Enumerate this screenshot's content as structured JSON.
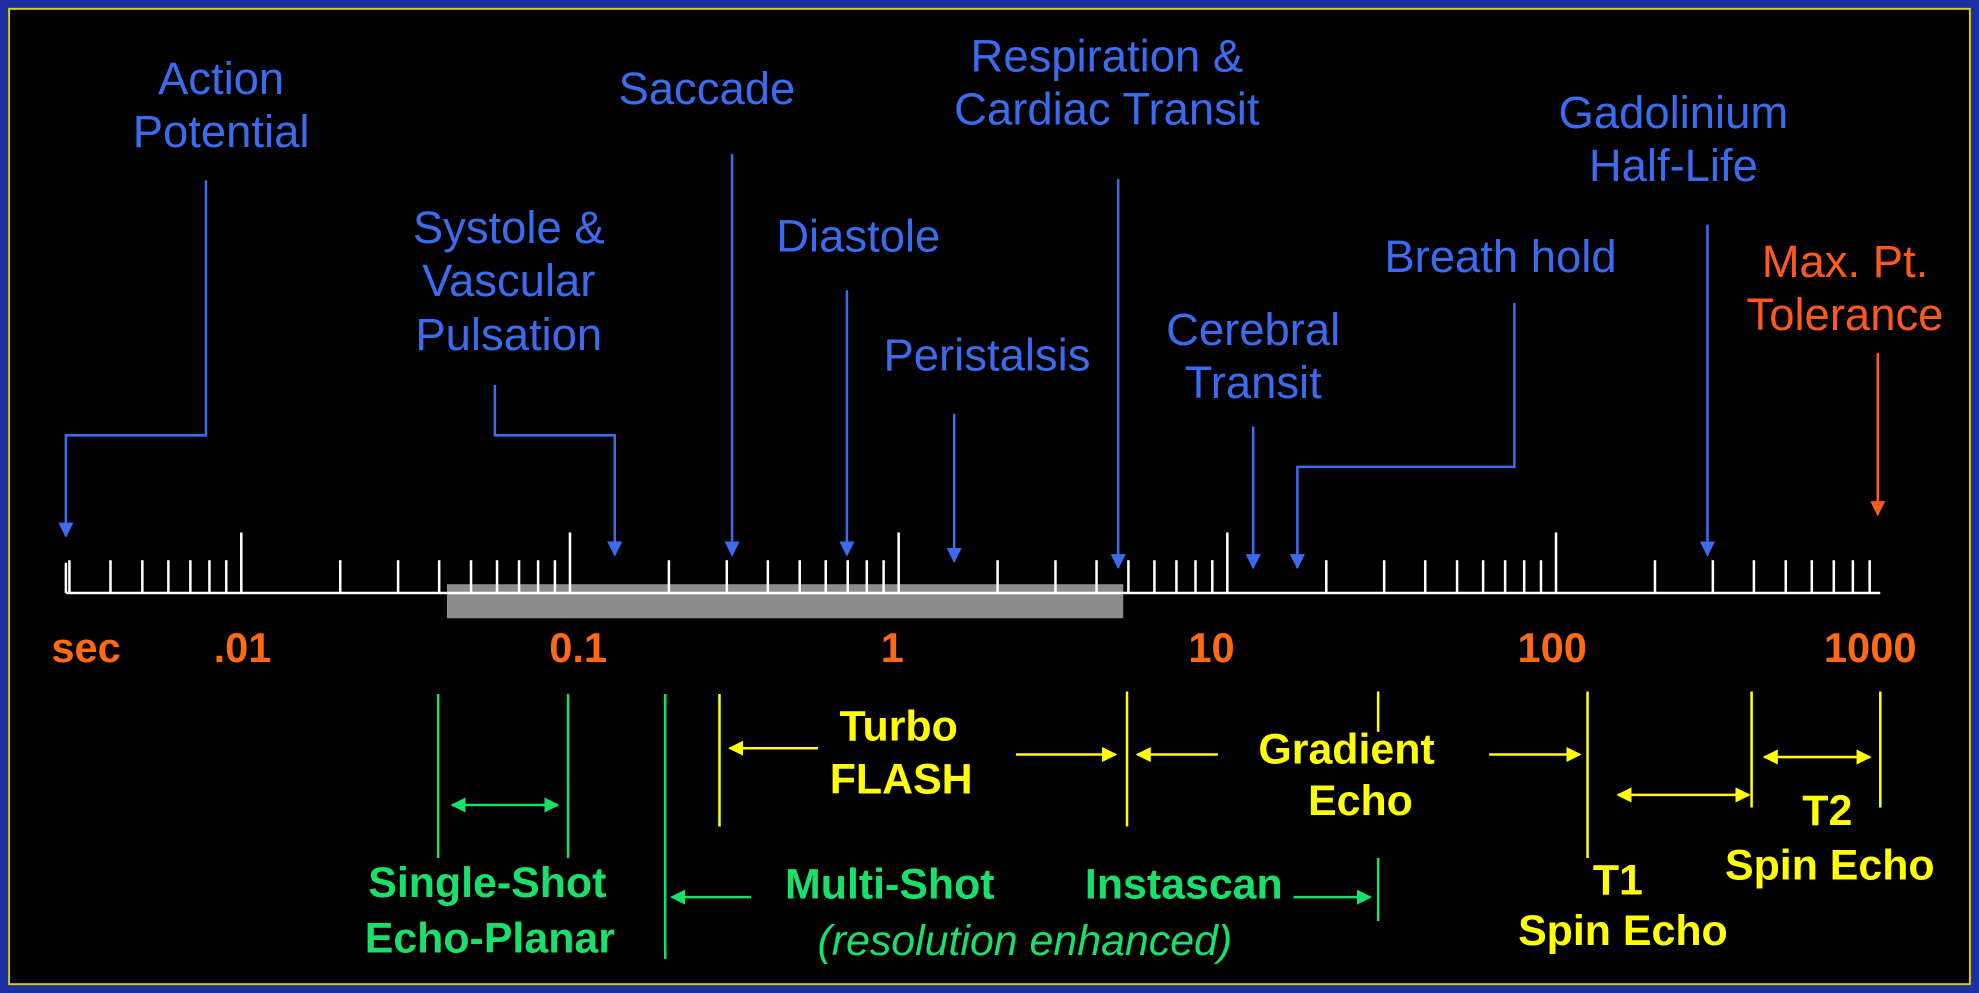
{
  "events": [
    {
      "lines": [
        "Action",
        "Potential"
      ]
    },
    {
      "lines": [
        "Systole &",
        "Vascular",
        "Pulsation"
      ]
    },
    {
      "lines": [
        "Saccade"
      ]
    },
    {
      "lines": [
        "Diastole"
      ]
    },
    {
      "lines": [
        "Peristalsis"
      ]
    },
    {
      "lines": [
        "Respiration &",
        "Cardiac Transit"
      ]
    },
    {
      "lines": [
        "Cerebral",
        "Transit"
      ]
    },
    {
      "lines": [
        "Breath hold"
      ]
    },
    {
      "lines": [
        "Gadolinium",
        "Half-Life"
      ]
    },
    {
      "lines": [
        "Max. Pt.",
        "Tolerance"
      ]
    }
  ],
  "axis_labels": [
    "sec",
    ".01",
    "0.1",
    "1",
    "10",
    "100",
    "1000"
  ],
  "sequences": [
    {
      "lines": [
        "Turbo",
        "FLASH"
      ]
    },
    {
      "lines": [
        "Gradient",
        "Echo"
      ]
    },
    {
      "lines": [
        "T1",
        "Spin Echo"
      ]
    },
    {
      "lines": [
        "T2",
        "Spin Echo"
      ]
    },
    {
      "lines": [
        "Single-Shot",
        "Echo-Planar"
      ]
    },
    {
      "lines": [
        "Multi-Shot",
        "Instascan",
        "(resolution  enhanced)"
      ]
    }
  ]
}
